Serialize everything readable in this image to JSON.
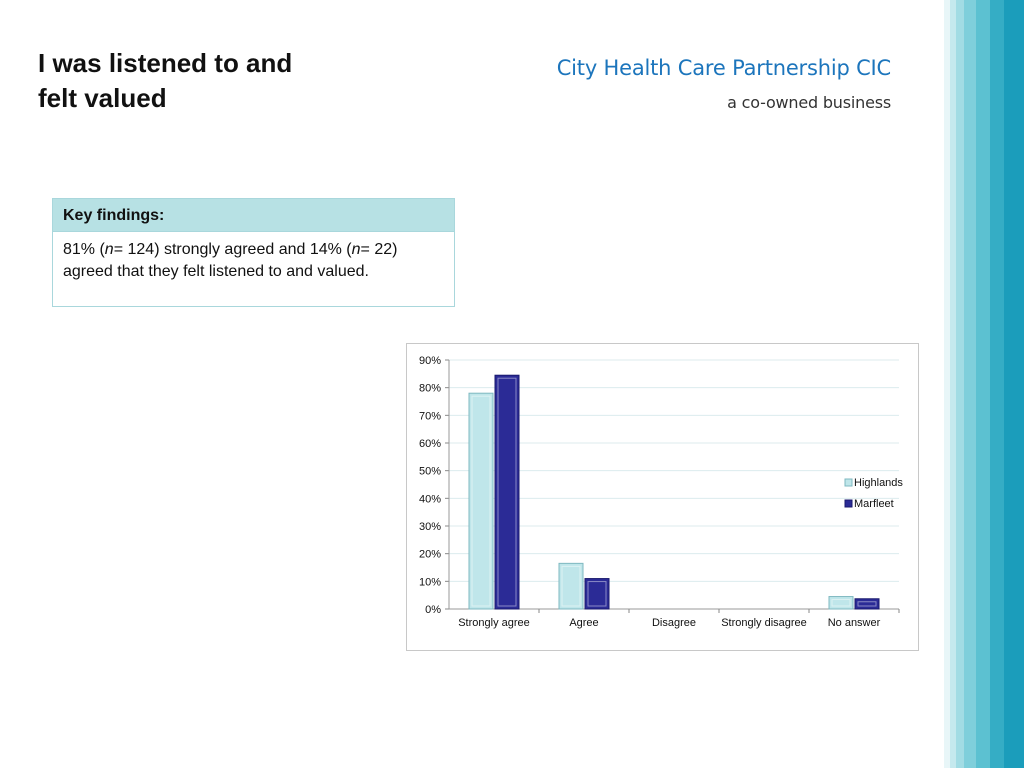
{
  "slide": {
    "title_line1": "I was listened to and",
    "title_line2": "felt valued"
  },
  "organisation": {
    "name": "City Health Care Partnership CIC",
    "tagline": "a co-owned business"
  },
  "key_findings": {
    "header": "Key findings:",
    "pct_strong": "81% (",
    "n_label_1": "n",
    "n_value_1": "= 124) strongly agreed and 14% (",
    "n_label_2": "n",
    "n_value_2": "= 22) agreed that they felt listened to and valued."
  },
  "decoration": {
    "stripe_colors": [
      "#ffffff",
      "#e8f6f8",
      "#c5e9ee",
      "#a2dce4",
      "#7fcfdb",
      "#5cc1d1",
      "#35adc5",
      "#1b9dbb"
    ]
  },
  "chart_data": {
    "type": "bar",
    "categories": [
      "Strongly agree",
      "Agree",
      "Disagree",
      "Strongly disagree",
      "No answer"
    ],
    "series": [
      {
        "name": "Highlands",
        "values": [
          78,
          16.5,
          0,
          0,
          4.5
        ],
        "color": "#bfe6ea",
        "edge": "#7fb8c0"
      },
      {
        "name": "Marfleet",
        "values": [
          84.5,
          11,
          0,
          0,
          3.7
        ],
        "color": "#2b2b96",
        "edge": "#1a1a6e"
      }
    ],
    "ylim": [
      0,
      90
    ],
    "yticks": [
      "0%",
      "10%",
      "20%",
      "30%",
      "40%",
      "50%",
      "60%",
      "70%",
      "80%",
      "90%"
    ],
    "grid": true,
    "legend": "right",
    "title": "",
    "xlabel": "",
    "ylabel": ""
  }
}
